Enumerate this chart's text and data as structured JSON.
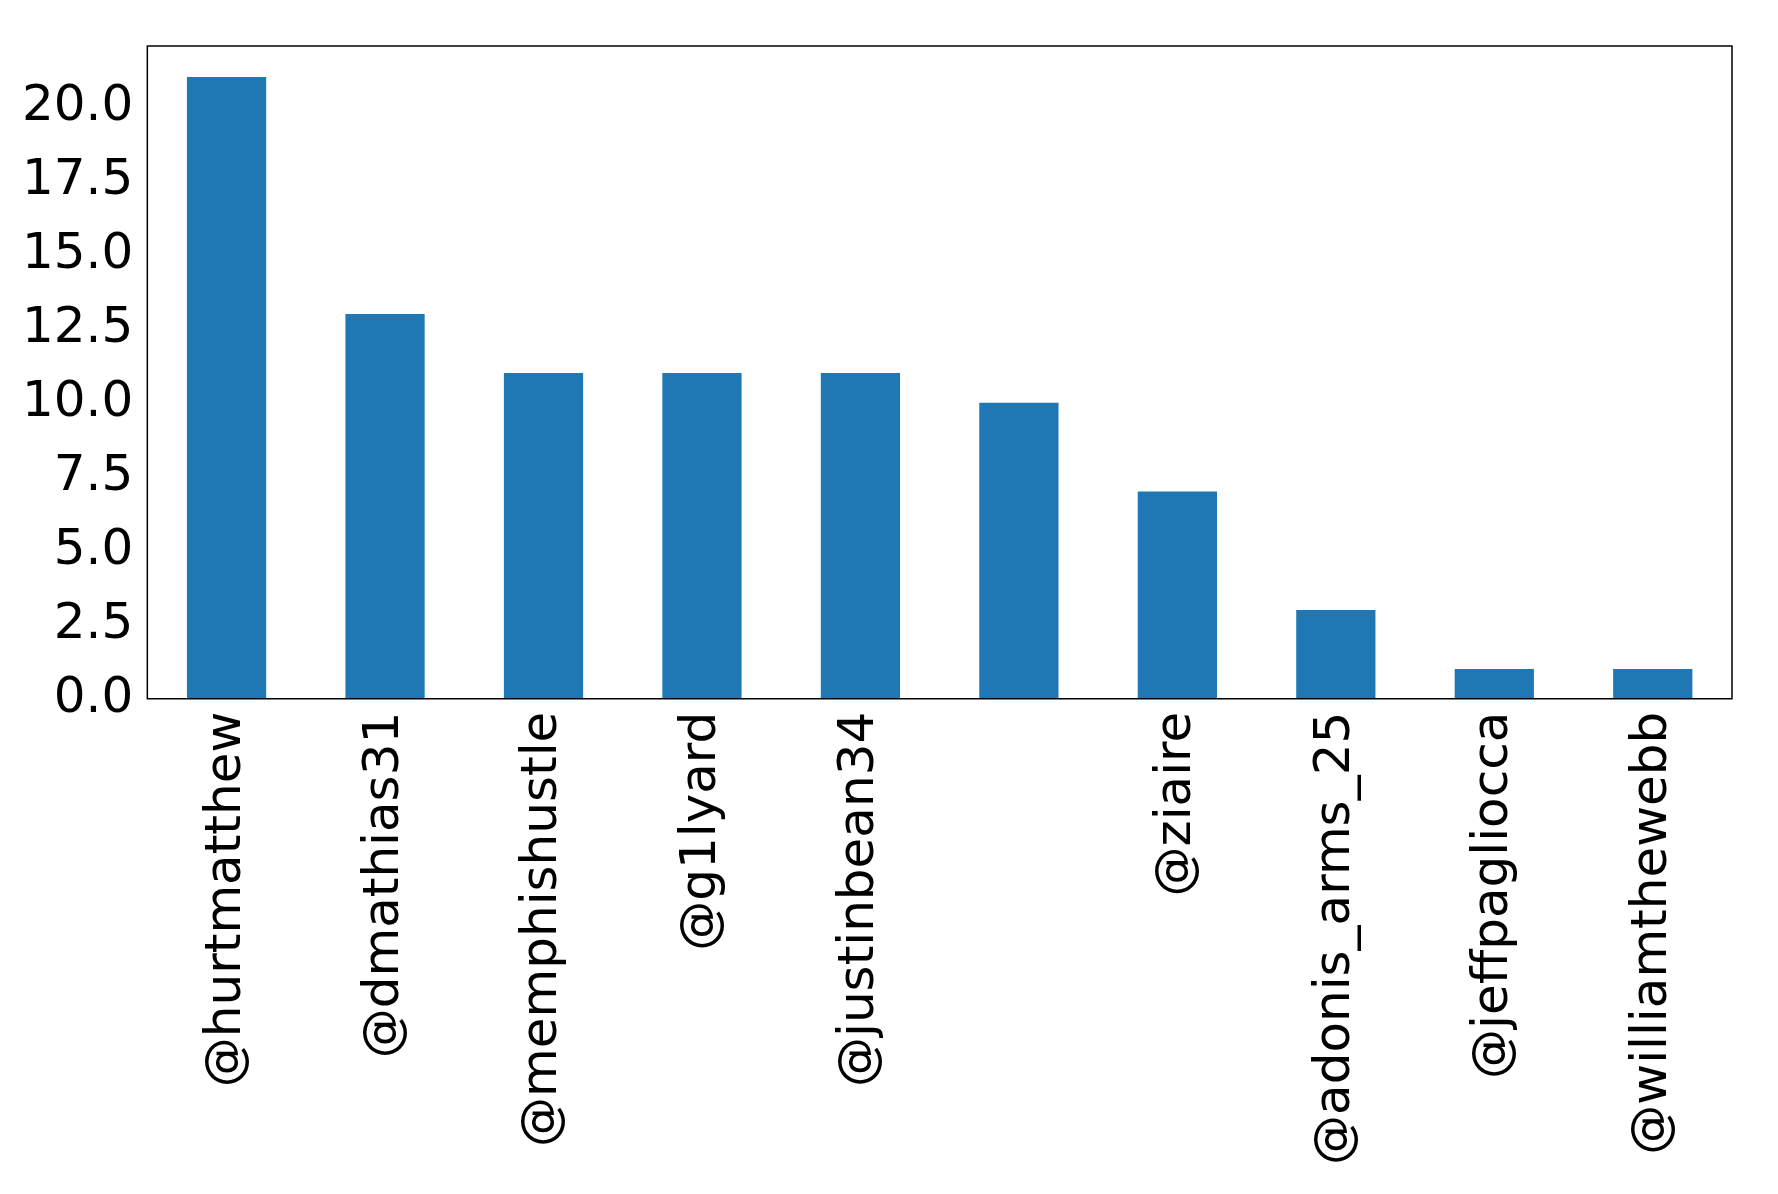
{
  "chart_data": {
    "type": "bar",
    "categories": [
      "@hurtmatthew",
      "@dmathias31",
      "@memphishustle",
      "@g1lyard",
      "@justinbean34",
      null,
      "@ziaire",
      "@adonis_arms_25",
      "@jeffpagliocca",
      "@williamthewebb"
    ],
    "values": [
      21,
      13,
      11,
      11,
      11,
      10,
      7,
      3,
      1,
      1
    ],
    "color": "#1f77b4",
    "ylim": [
      0,
      22.05
    ],
    "yticks": [
      {
        "value": 0,
        "label": "0.0"
      },
      {
        "value": 2.5,
        "label": "2.5"
      },
      {
        "value": 5,
        "label": "5.0"
      },
      {
        "value": 7.5,
        "label": "7.5"
      },
      {
        "value": 10,
        "label": "10.0"
      },
      {
        "value": 12.5,
        "label": "12.5"
      },
      {
        "value": 15,
        "label": "15.0"
      },
      {
        "value": 17.5,
        "label": "17.5"
      },
      {
        "value": 20,
        "label": "20.0"
      }
    ],
    "grid": false,
    "legend": false
  }
}
